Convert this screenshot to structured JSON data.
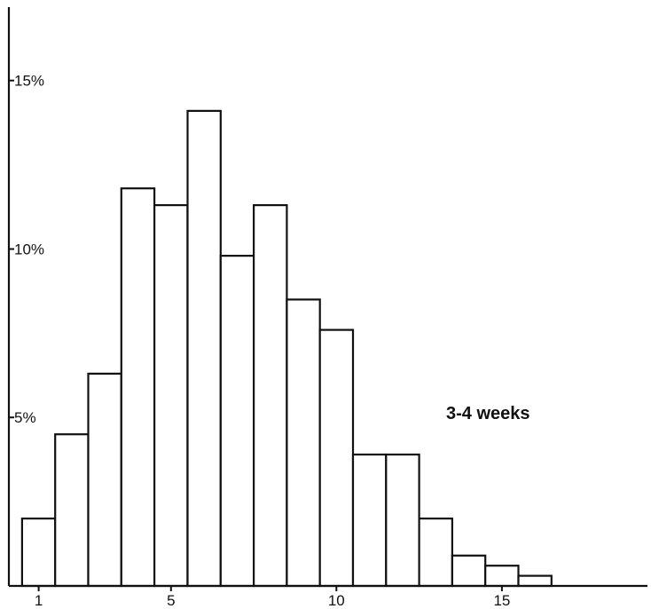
{
  "chart_data": {
    "type": "bar",
    "categories": [
      1,
      2,
      3,
      4,
      5,
      6,
      7,
      8,
      9,
      10,
      11,
      12,
      13,
      14,
      15,
      16
    ],
    "values": [
      2.0,
      4.5,
      6.3,
      11.8,
      11.3,
      14.1,
      9.8,
      11.3,
      8.5,
      7.6,
      3.9,
      3.9,
      2.0,
      0.9,
      0.6,
      0.3
    ],
    "x_ticks": [
      {
        "value": 1,
        "label": "1"
      },
      {
        "value": 5,
        "label": "5"
      },
      {
        "value": 10,
        "label": "10"
      },
      {
        "value": 15,
        "label": "15"
      }
    ],
    "y_ticks": [
      {
        "value": 5,
        "label": "5%"
      },
      {
        "value": 10,
        "label": "10%"
      },
      {
        "value": 15,
        "label": "15%"
      }
    ],
    "xlim": [
      0.1,
      19.4
    ],
    "ylim": [
      0,
      16.6
    ],
    "ylabel": "",
    "xlabel": "",
    "grid": false,
    "annotation": "3-4 weeks",
    "bar_fill": "#ffffff",
    "bar_stroke": "#111111"
  }
}
